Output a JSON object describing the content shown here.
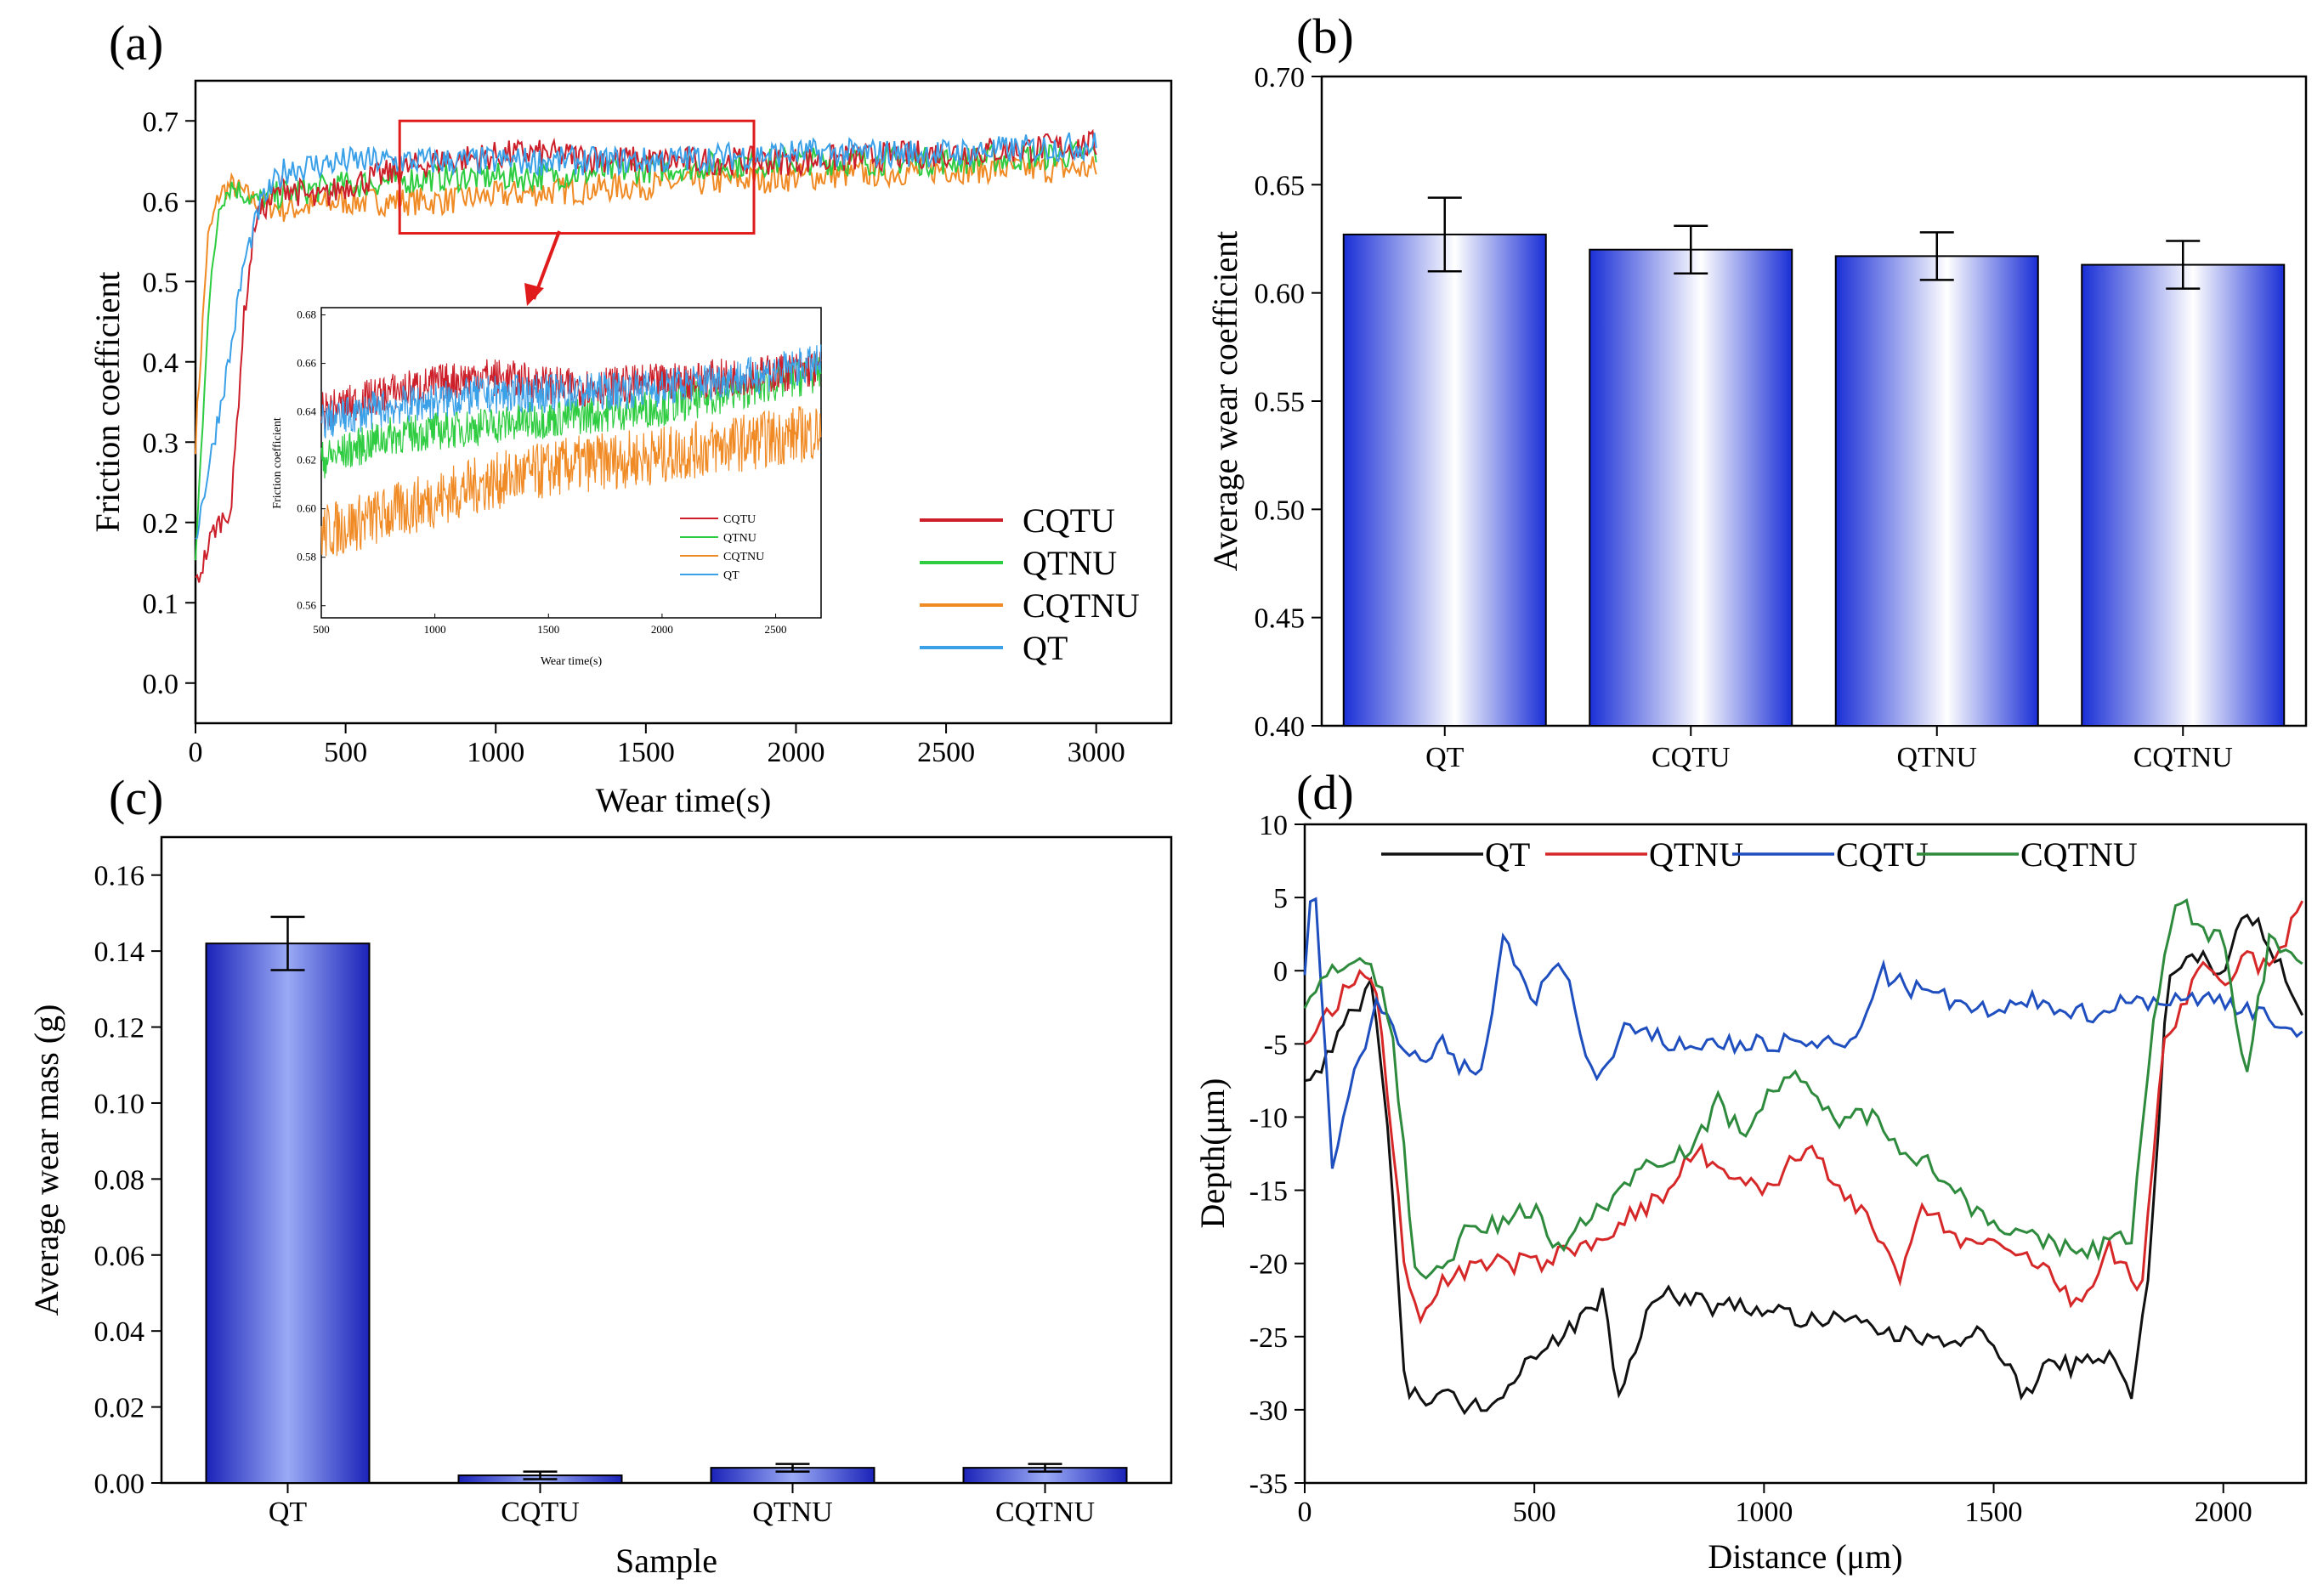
{
  "figure": {
    "panel_labels": [
      "(a)",
      "(b)",
      "(c)",
      "(d)"
    ]
  },
  "chart_data": [
    {
      "panel": "(a)",
      "type": "line",
      "xlabel": "Wear time(s)",
      "ylabel": "Friction coefficient",
      "xlim": [
        0,
        3250
      ],
      "ylim": [
        -0.05,
        0.75
      ],
      "xticks": [
        0,
        500,
        1000,
        1500,
        2000,
        2500,
        3000
      ],
      "yticks": [
        0.0,
        0.1,
        0.2,
        0.3,
        0.4,
        0.5,
        0.6,
        0.7
      ],
      "legend_position": "bottom-right",
      "series": [
        {
          "name": "CQTU",
          "color": "#cc1f2a",
          "x": [
            0,
            60,
            120,
            160,
            200,
            300,
            400,
            500,
            800,
            1100,
            1500,
            2000,
            2500,
            3000
          ],
          "y": [
            0.12,
            0.19,
            0.22,
            0.45,
            0.58,
            0.62,
            0.6,
            0.62,
            0.65,
            0.66,
            0.65,
            0.65,
            0.66,
            0.67
          ]
        },
        {
          "name": "QTNU",
          "color": "#2ecc40",
          "x": [
            0,
            40,
            80,
            120,
            200,
            300,
            500,
            800,
            1100,
            1500,
            2000,
            2500,
            3000
          ],
          "y": [
            0.15,
            0.45,
            0.6,
            0.62,
            0.6,
            0.61,
            0.62,
            0.63,
            0.63,
            0.64,
            0.65,
            0.65,
            0.66
          ]
        },
        {
          "name": "CQTNU",
          "color": "#f08a24",
          "x": [
            0,
            40,
            80,
            120,
            200,
            300,
            500,
            800,
            1100,
            1500,
            2000,
            2500,
            3000
          ],
          "y": [
            0.3,
            0.55,
            0.61,
            0.62,
            0.6,
            0.59,
            0.6,
            0.6,
            0.61,
            0.62,
            0.63,
            0.64,
            0.64
          ]
        },
        {
          "name": "QT",
          "color": "#3aa0e8",
          "x": [
            0,
            60,
            120,
            160,
            220,
            300,
            500,
            800,
            1100,
            1500,
            2000,
            2500,
            3000
          ],
          "y": [
            0.18,
            0.3,
            0.42,
            0.52,
            0.6,
            0.64,
            0.65,
            0.65,
            0.65,
            0.65,
            0.66,
            0.66,
            0.67
          ]
        }
      ],
      "zoom_box": {
        "x": [
          680,
          1860
        ],
        "y": [
          0.56,
          0.7
        ]
      },
      "inset": {
        "type": "line",
        "xlabel": "Wear time(s)",
        "ylabel": "Friction coefficient",
        "xlim": [
          500,
          2700
        ],
        "ylim": [
          0.555,
          0.683
        ],
        "xticks": [
          500,
          1000,
          1500,
          2000,
          2500
        ],
        "yticks": [
          0.56,
          0.58,
          0.6,
          0.62,
          0.64,
          0.66,
          0.68
        ],
        "legend": [
          "CQTU",
          "QTNU",
          "CQTNU",
          "QT"
        ],
        "series": [
          {
            "name": "CQTU",
            "color": "#cc1f2a",
            "x": [
              500,
              800,
              1200,
              1600,
              2000,
              2400,
              2700
            ],
            "y": [
              0.64,
              0.648,
              0.655,
              0.65,
              0.652,
              0.655,
              0.658
            ]
          },
          {
            "name": "QTNU",
            "color": "#2ecc40",
            "x": [
              500,
              800,
              1200,
              1600,
              2000,
              2400,
              2700
            ],
            "y": [
              0.62,
              0.63,
              0.634,
              0.638,
              0.642,
              0.65,
              0.656
            ]
          },
          {
            "name": "CQTNU",
            "color": "#f08a24",
            "x": [
              500,
              800,
              1200,
              1600,
              2000,
              2400,
              2700
            ],
            "y": [
              0.59,
              0.598,
              0.61,
              0.618,
              0.622,
              0.628,
              0.632
            ]
          },
          {
            "name": "QT",
            "color": "#3aa0e8",
            "x": [
              500,
              800,
              1200,
              1600,
              2000,
              2400,
              2700
            ],
            "y": [
              0.636,
              0.642,
              0.647,
              0.648,
              0.65,
              0.655,
              0.66
            ]
          }
        ]
      }
    },
    {
      "panel": "(b)",
      "type": "bar",
      "xlabel": "",
      "ylabel": "Average wear coefficient",
      "ylim": [
        0.4,
        0.7
      ],
      "yticks": [
        0.4,
        0.45,
        0.5,
        0.55,
        0.6,
        0.65,
        0.7
      ],
      "categories": [
        "QT",
        "CQTU",
        "QTNU",
        "CQTNU"
      ],
      "values": [
        0.627,
        0.62,
        0.617,
        0.613
      ],
      "errors": [
        0.017,
        0.011,
        0.011,
        0.011
      ]
    },
    {
      "panel": "(c)",
      "type": "bar",
      "xlabel": "Sample",
      "ylabel": "Average wear mass (g)",
      "ylim": [
        0.0,
        0.17
      ],
      "yticks": [
        "0.00",
        "0.02",
        "0.04",
        "0.06",
        "0.08",
        "0.10",
        "0.12",
        "0.14",
        "0.16"
      ],
      "categories": [
        "QT",
        "CQTU",
        "QTNU",
        "CQTNU"
      ],
      "values": [
        0.142,
        0.002,
        0.004,
        0.004
      ],
      "errors": [
        0.007,
        0.001,
        0.001,
        0.001
      ]
    },
    {
      "panel": "(d)",
      "type": "line",
      "xlabel": "Distance (μm)",
      "ylabel": "Depth(μm)",
      "xlim": [
        0,
        2180
      ],
      "ylim": [
        -35,
        10
      ],
      "xticks": [
        0,
        500,
        1000,
        1500,
        2000
      ],
      "yticks": [
        10,
        5,
        0,
        -5,
        -10,
        -15,
        -20,
        -25,
        -30,
        -35
      ],
      "legend_position": "top",
      "series": [
        {
          "name": "QT",
          "color": "#111111",
          "x": [
            0,
            50,
            100,
            150,
            180,
            220,
            300,
            380,
            450,
            500,
            550,
            600,
            650,
            680,
            750,
            800,
            900,
            1000,
            1100,
            1200,
            1300,
            1400,
            1500,
            1560,
            1620,
            1700,
            1760,
            1800,
            1840,
            1880,
            1950,
            2000,
            2050,
            2100,
            2180
          ],
          "y": [
            -8,
            -6,
            -3,
            -1,
            -10,
            -29,
            -29,
            -30,
            -28,
            -26,
            -25,
            -24,
            -22,
            -29,
            -23,
            -22,
            -23,
            -23,
            -24,
            -24,
            -25,
            -25,
            -25,
            -29,
            -27,
            -27,
            -26,
            -29,
            -20,
            0,
            1,
            0,
            4,
            2,
            -4
          ]
        },
        {
          "name": "QTNU",
          "color": "#d62828",
          "x": [
            0,
            50,
            100,
            150,
            180,
            220,
            260,
            300,
            400,
            500,
            600,
            700,
            800,
            850,
            900,
            1000,
            1100,
            1200,
            1300,
            1350,
            1400,
            1500,
            1600,
            1680,
            1750,
            1820,
            1870,
            1950,
            2000,
            2050,
            2100,
            2180
          ],
          "y": [
            -5,
            -3,
            -1,
            0,
            -8,
            -21,
            -24,
            -21,
            -20,
            -20,
            -19,
            -17,
            -15,
            -12,
            -14,
            -15,
            -12,
            -16,
            -21,
            -16,
            -18,
            -19,
            -20,
            -23,
            -19,
            -22,
            -5,
            0,
            -1,
            1,
            0,
            5
          ]
        },
        {
          "name": "CQTU",
          "color": "#1f4fbf",
          "x": [
            0,
            20,
            60,
            100,
            160,
            200,
            250,
            300,
            380,
            430,
            500,
            560,
            620,
            650,
            700,
            800,
            900,
            1000,
            1100,
            1200,
            1250,
            1300,
            1400,
            1500,
            1600,
            1700,
            1800,
            1900,
            2000,
            2100,
            2180
          ],
          "y": [
            0,
            7,
            -13,
            -8,
            -2,
            -5,
            -6,
            -5,
            -8,
            2,
            -2,
            1,
            -7,
            -7,
            -4,
            -5,
            -5,
            -5,
            -5,
            -5,
            0,
            -1,
            -2,
            -3,
            -2,
            -3,
            -2,
            -2,
            -2,
            -3,
            -5
          ]
        },
        {
          "name": "CQTNU",
          "color": "#2e8b3d",
          "x": [
            0,
            50,
            100,
            150,
            190,
            240,
            280,
            350,
            450,
            500,
            550,
            650,
            750,
            850,
            900,
            950,
            1050,
            1150,
            1250,
            1300,
            1350,
            1450,
            1550,
            1650,
            1720,
            1800,
            1850,
            1900,
            1950,
            2000,
            2050,
            2100,
            2180
          ],
          "y": [
            -3,
            0,
            1,
            0,
            -4,
            -20,
            -21,
            -18,
            -17,
            -16,
            -19,
            -16,
            -13,
            -12,
            -9,
            -11,
            -7,
            -10,
            -10,
            -12,
            -13,
            -16,
            -18,
            -19,
            -19,
            -18,
            -3,
            5,
            3,
            2,
            -7,
            2,
            1
          ]
        }
      ]
    }
  ]
}
